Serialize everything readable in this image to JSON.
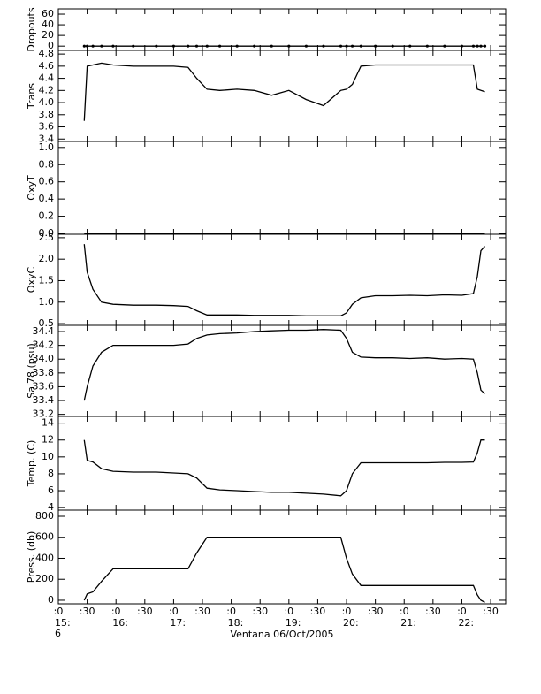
{
  "chart_data": [
    {
      "type": "line",
      "ylabel": "Dropouts",
      "color": "#000000",
      "markers": true,
      "x": [
        15.45,
        15.5,
        15.6,
        15.75,
        15.95,
        16.3,
        16.7,
        17.0,
        17.25,
        17.4,
        17.58,
        17.8,
        18.1,
        18.4,
        18.7,
        19.0,
        19.3,
        19.6,
        19.9,
        20.0,
        20.1,
        20.25,
        20.5,
        20.8,
        21.1,
        21.4,
        21.7,
        22.0,
        22.2,
        22.27,
        22.33,
        22.4
      ],
      "values": [
        0,
        0,
        0,
        0,
        0,
        0,
        0,
        0,
        0,
        0,
        0,
        0,
        0,
        0,
        0,
        0,
        0,
        0,
        0,
        0,
        0,
        0,
        0,
        0,
        0,
        0,
        0,
        0,
        0,
        0,
        0,
        0
      ],
      "xlim": [
        15,
        22.76
      ],
      "ylim": [
        -8,
        70
      ],
      "yticks": [
        0,
        20,
        40,
        60
      ]
    },
    {
      "type": "line",
      "ylabel": "Trans",
      "color": "#000000",
      "x": [
        15.45,
        15.5,
        15.6,
        15.75,
        15.95,
        16.3,
        16.7,
        17.0,
        17.25,
        17.4,
        17.58,
        17.8,
        18.1,
        18.4,
        18.7,
        19.0,
        19.3,
        19.6,
        19.9,
        20.0,
        20.1,
        20.25,
        20.5,
        20.8,
        21.1,
        21.4,
        21.7,
        22.0,
        22.2,
        22.27,
        22.33,
        22.4
      ],
      "values": [
        3.7,
        4.6,
        4.62,
        4.65,
        4.62,
        4.6,
        4.6,
        4.6,
        4.58,
        4.4,
        4.22,
        4.2,
        4.22,
        4.2,
        4.12,
        4.2,
        4.05,
        3.95,
        4.2,
        4.22,
        4.3,
        4.6,
        4.62,
        4.62,
        4.62,
        4.62,
        4.62,
        4.62,
        4.62,
        4.22,
        4.2,
        4.18
      ],
      "xlim": [
        15,
        22.76
      ],
      "ylim": [
        3.36,
        4.86
      ],
      "yticks": [
        3.4,
        3.6,
        3.8,
        {
          "value": 4,
          "label": "4.0"
        },
        4.2,
        4.4,
        4.6,
        4.8
      ]
    },
    {
      "type": "line",
      "ylabel": "OxyT",
      "color": "#000000",
      "x": [
        15.45,
        15.5,
        15.6,
        15.75,
        15.95,
        16.3,
        16.7,
        17.0,
        17.25,
        17.4,
        17.58,
        17.8,
        18.1,
        18.4,
        18.7,
        19.0,
        19.3,
        19.6,
        19.9,
        20.0,
        20.1,
        20.25,
        20.5,
        20.8,
        21.1,
        21.4,
        21.7,
        22.0,
        22.2,
        22.27,
        22.33,
        22.4
      ],
      "values": [
        0,
        0,
        0,
        0,
        0,
        0,
        0,
        0,
        0,
        0,
        0,
        0,
        0,
        0,
        0,
        0,
        0,
        0,
        0,
        0,
        0,
        0,
        0,
        0,
        0,
        0,
        0,
        0,
        0,
        0,
        0,
        0
      ],
      "xlim": [
        15,
        22.76
      ],
      "ylim": [
        -0.01,
        1.07
      ],
      "yticks": [
        {
          "value": 0,
          "label": "0.0"
        },
        0.2,
        0.4,
        0.6,
        0.8,
        {
          "value": 1,
          "label": "1.0"
        }
      ]
    },
    {
      "type": "line",
      "ylabel": "OxyC",
      "color": "#000000",
      "x": [
        15.45,
        15.5,
        15.6,
        15.75,
        15.95,
        16.3,
        16.7,
        17.0,
        17.25,
        17.4,
        17.58,
        17.8,
        18.1,
        18.4,
        18.7,
        19.0,
        19.3,
        19.6,
        19.9,
        20.0,
        20.1,
        20.25,
        20.5,
        20.8,
        21.1,
        21.4,
        21.7,
        22.0,
        22.2,
        22.27,
        22.33,
        22.4
      ],
      "values": [
        2.35,
        1.7,
        1.3,
        1.0,
        0.95,
        0.93,
        0.93,
        0.92,
        0.9,
        0.8,
        0.7,
        0.7,
        0.7,
        0.69,
        0.69,
        0.69,
        0.68,
        0.68,
        0.68,
        0.75,
        0.95,
        1.1,
        1.15,
        1.15,
        1.16,
        1.15,
        1.17,
        1.16,
        1.2,
        1.6,
        2.2,
        2.3
      ],
      "xlim": [
        15,
        22.76
      ],
      "ylim": [
        0.46,
        2.58
      ],
      "yticks": [
        0.5,
        {
          "value": 1,
          "label": "1.0"
        },
        1.5,
        {
          "value": 2,
          "label": "2.0"
        },
        2.5
      ]
    },
    {
      "type": "line",
      "ylabel": "Sal78 (psu)",
      "color": "#000000",
      "x": [
        15.45,
        15.5,
        15.6,
        15.75,
        15.95,
        16.3,
        16.7,
        17.0,
        17.25,
        17.4,
        17.58,
        17.8,
        18.1,
        18.4,
        18.7,
        19.0,
        19.3,
        19.6,
        19.9,
        20.0,
        20.1,
        20.25,
        20.5,
        20.8,
        21.1,
        21.4,
        21.7,
        22.0,
        22.2,
        22.27,
        22.33,
        22.4
      ],
      "values": [
        33.4,
        33.6,
        33.9,
        34.1,
        34.2,
        34.2,
        34.2,
        34.2,
        34.22,
        34.3,
        34.35,
        34.37,
        34.38,
        34.4,
        34.41,
        34.42,
        34.42,
        34.43,
        34.42,
        34.3,
        34.1,
        34.03,
        34.02,
        34.02,
        34.01,
        34.02,
        34.0,
        34.01,
        34.0,
        33.8,
        33.55,
        33.5
      ],
      "xlim": [
        15,
        22.76
      ],
      "ylim": [
        33.17,
        34.49
      ],
      "yticks": [
        33.2,
        33.4,
        33.6,
        33.8,
        {
          "value": 34,
          "label": "34.0"
        },
        34.2,
        34.4
      ]
    },
    {
      "type": "line",
      "ylabel": "Temp. (C)",
      "color": "#000000",
      "x": [
        15.45,
        15.5,
        15.6,
        15.75,
        15.95,
        16.3,
        16.7,
        17.0,
        17.25,
        17.4,
        17.58,
        17.8,
        18.1,
        18.4,
        18.7,
        19.0,
        19.3,
        19.6,
        19.9,
        20.0,
        20.1,
        20.25,
        20.5,
        20.8,
        21.1,
        21.4,
        21.7,
        22.0,
        22.2,
        22.27,
        22.33,
        22.4
      ],
      "values": [
        12,
        9.6,
        9.4,
        8.6,
        8.3,
        8.2,
        8.2,
        8.1,
        8.0,
        7.5,
        6.3,
        6.1,
        6.0,
        5.9,
        5.8,
        5.8,
        5.7,
        5.6,
        5.4,
        6.0,
        8.0,
        9.3,
        9.3,
        9.3,
        9.3,
        9.3,
        9.35,
        9.35,
        9.4,
        10.5,
        12,
        12
      ],
      "xlim": [
        15,
        22.76
      ],
      "ylim": [
        3.7,
        14.8
      ],
      "yticks": [
        4,
        6,
        8,
        10,
        12,
        14
      ]
    },
    {
      "type": "line",
      "ylabel": "Press. (db)",
      "color": "#000000",
      "xlabel": "Ventana 06/Oct/2005",
      "x": [
        15.45,
        15.5,
        15.6,
        15.75,
        15.95,
        16.3,
        16.7,
        17.0,
        17.25,
        17.4,
        17.58,
        17.8,
        18.1,
        18.4,
        18.7,
        19.0,
        19.3,
        19.6,
        19.9,
        20.0,
        20.1,
        20.25,
        20.5,
        20.8,
        21.1,
        21.4,
        21.7,
        22.0,
        22.2,
        22.27,
        22.33,
        22.4
      ],
      "values": [
        0,
        60,
        80,
        180,
        300,
        300,
        300,
        300,
        300,
        450,
        600,
        600,
        600,
        600,
        600,
        600,
        600,
        600,
        600,
        400,
        250,
        140,
        140,
        140,
        140,
        140,
        140,
        140,
        140,
        50,
        0,
        -20
      ],
      "xlim": [
        15,
        22.76
      ],
      "ylim": [
        -34,
        859
      ],
      "yticks": [
        0,
        200,
        400,
        600,
        800
      ],
      "xticks": [
        {
          "value": 15,
          "label": ":0"
        },
        {
          "value": 15.5,
          "label": ":30"
        },
        {
          "value": 16,
          "label": ":0"
        },
        {
          "value": 16.5,
          "label": ":30"
        },
        {
          "value": 17,
          "label": ":0"
        },
        {
          "value": 17.5,
          "label": ":30"
        },
        {
          "value": 18,
          "label": ":0"
        },
        {
          "value": 18.5,
          "label": ":30"
        },
        {
          "value": 19,
          "label": ":0"
        },
        {
          "value": 19.5,
          "label": ":30"
        },
        {
          "value": 20,
          "label": ":0"
        },
        {
          "value": 20.5,
          "label": ":30"
        },
        {
          "value": 21,
          "label": ":0"
        },
        {
          "value": 21.5,
          "label": ":30"
        },
        {
          "value": 22,
          "label": ":0"
        },
        {
          "value": 22.5,
          "label": ":30"
        }
      ],
      "xtick_hours": [
        {
          "value": 15,
          "label": "15:"
        },
        {
          "value": 16,
          "label": "16:"
        },
        {
          "value": 17,
          "label": "17:"
        },
        {
          "value": 18,
          "label": "18:"
        },
        {
          "value": 19,
          "label": "19:"
        },
        {
          "value": 20,
          "label": "20:"
        },
        {
          "value": 21,
          "label": "21:"
        },
        {
          "value": 22,
          "label": "22:"
        }
      ],
      "xtick_days": [
        {
          "value": 15,
          "label": "6"
        }
      ]
    }
  ]
}
